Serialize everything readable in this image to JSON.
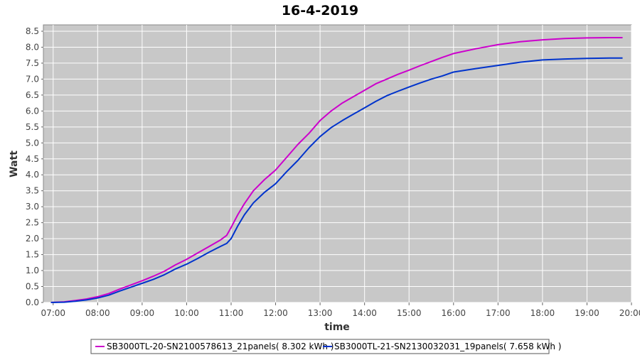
{
  "chart_data": {
    "type": "line",
    "title": "16-4-2019",
    "xlabel": "time",
    "ylabel": "Watt",
    "x_ticks": [
      "07:00",
      "08:00",
      "09:00",
      "10:00",
      "11:00",
      "12:00",
      "13:00",
      "14:00",
      "15:00",
      "16:00",
      "17:00",
      "18:00",
      "19:00",
      "20:00"
    ],
    "y_ticks": [
      "0.0",
      "0.5",
      "1.0",
      "1.5",
      "2.0",
      "2.5",
      "3.0",
      "3.5",
      "4.0",
      "4.5",
      "5.0",
      "5.5",
      "6.0",
      "6.5",
      "7.0",
      "7.5",
      "8.0",
      "8.5"
    ],
    "xlim": [
      6.78,
      20.0
    ],
    "ylim": [
      0,
      8.7
    ],
    "grid": true,
    "legend_position": "bottom",
    "series": [
      {
        "name": "SB3000TL-20-SN2100578613_21panels( 8.302 kWh )",
        "color": "#cc00cc",
        "x": [
          6.95,
          7.25,
          7.5,
          7.75,
          8.0,
          8.25,
          8.5,
          8.75,
          9.0,
          9.25,
          9.5,
          9.75,
          10.0,
          10.25,
          10.5,
          10.75,
          10.9,
          11.0,
          11.15,
          11.3,
          11.5,
          11.75,
          12.0,
          12.25,
          12.5,
          12.75,
          13.0,
          13.25,
          13.5,
          13.75,
          14.0,
          14.25,
          14.5,
          14.75,
          15.0,
          15.25,
          15.5,
          15.75,
          16.0,
          16.5,
          17.0,
          17.5,
          18.0,
          18.5,
          19.0,
          19.5,
          19.8
        ],
        "y": [
          0.0,
          0.02,
          0.06,
          0.11,
          0.18,
          0.28,
          0.42,
          0.55,
          0.68,
          0.82,
          0.98,
          1.18,
          1.35,
          1.55,
          1.75,
          1.95,
          2.1,
          2.35,
          2.75,
          3.1,
          3.5,
          3.85,
          4.15,
          4.55,
          4.95,
          5.3,
          5.7,
          6.0,
          6.25,
          6.45,
          6.65,
          6.85,
          7.0,
          7.15,
          7.28,
          7.42,
          7.55,
          7.68,
          7.8,
          7.95,
          8.08,
          8.17,
          8.23,
          8.27,
          8.29,
          8.3,
          8.3
        ]
      },
      {
        "name": "SB3000TL-21-SN2130032031_19panels( 7.658 kWh )",
        "color": "#0033cc",
        "x": [
          6.95,
          7.25,
          7.5,
          7.75,
          8.0,
          8.25,
          8.5,
          8.75,
          9.0,
          9.25,
          9.5,
          9.75,
          10.0,
          10.25,
          10.5,
          10.75,
          10.9,
          11.0,
          11.15,
          11.3,
          11.5,
          11.75,
          12.0,
          12.25,
          12.5,
          12.75,
          13.0,
          13.25,
          13.5,
          13.75,
          14.0,
          14.25,
          14.5,
          14.75,
          15.0,
          15.25,
          15.5,
          15.75,
          16.0,
          16.5,
          17.0,
          17.5,
          18.0,
          18.5,
          19.0,
          19.5,
          19.8
        ],
        "y": [
          0.0,
          0.01,
          0.04,
          0.08,
          0.14,
          0.23,
          0.36,
          0.48,
          0.6,
          0.72,
          0.87,
          1.05,
          1.2,
          1.38,
          1.57,
          1.75,
          1.85,
          2.0,
          2.4,
          2.75,
          3.12,
          3.45,
          3.72,
          4.1,
          4.45,
          4.85,
          5.2,
          5.48,
          5.7,
          5.9,
          6.1,
          6.3,
          6.48,
          6.62,
          6.75,
          6.88,
          7.0,
          7.1,
          7.22,
          7.33,
          7.43,
          7.53,
          7.6,
          7.63,
          7.65,
          7.66,
          7.66
        ]
      }
    ]
  }
}
